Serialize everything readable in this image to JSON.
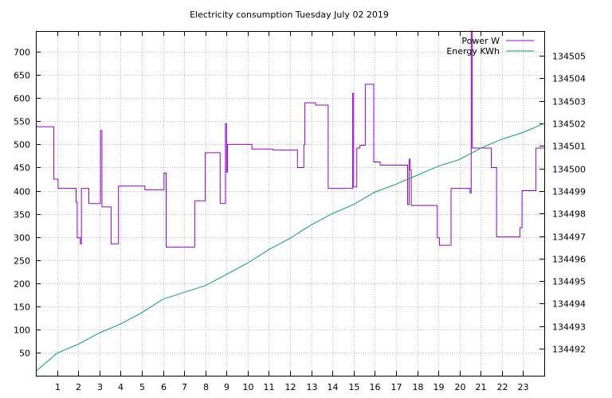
{
  "chart_data": {
    "type": "line",
    "title": "Electricity consumption Tuesday July 02 2019",
    "x_ticks": [
      1,
      2,
      3,
      4,
      5,
      6,
      7,
      8,
      9,
      10,
      11,
      12,
      13,
      14,
      15,
      16,
      17,
      18,
      19,
      20,
      21,
      22,
      23
    ],
    "xlim": [
      0,
      24
    ],
    "y_ticks": [
      50,
      100,
      150,
      200,
      250,
      300,
      350,
      400,
      450,
      500,
      550,
      600,
      650,
      700
    ],
    "ylim": [
      0,
      745
    ],
    "y2_ticks": [
      134492,
      134493,
      134494,
      134495,
      134496,
      134497,
      134498,
      134499,
      134500,
      134501,
      134502,
      134503,
      134504,
      134505
    ],
    "y2lim": [
      134490.8,
      134506.1
    ],
    "grid": true,
    "legend_position": "top-right",
    "series": [
      {
        "name": "Power W",
        "axis": "left",
        "color": "#9400d3",
        "step": true,
        "points": [
          [
            0,
            545
          ],
          [
            0.05,
            538
          ],
          [
            0.85,
            538
          ],
          [
            0.85,
            425
          ],
          [
            1.05,
            425
          ],
          [
            1.05,
            405
          ],
          [
            1.9,
            405
          ],
          [
            1.9,
            375
          ],
          [
            1.95,
            375
          ],
          [
            1.95,
            298
          ],
          [
            2.1,
            298
          ],
          [
            2.1,
            285
          ],
          [
            2.15,
            285
          ],
          [
            2.15,
            405
          ],
          [
            2.5,
            405
          ],
          [
            2.5,
            372
          ],
          [
            3.05,
            372
          ],
          [
            3.05,
            530
          ],
          [
            3.12,
            530
          ],
          [
            3.12,
            365
          ],
          [
            3.55,
            365
          ],
          [
            3.55,
            285
          ],
          [
            3.9,
            285
          ],
          [
            3.9,
            410
          ],
          [
            5.15,
            410
          ],
          [
            5.15,
            402
          ],
          [
            6.05,
            402
          ],
          [
            6.05,
            438
          ],
          [
            6.15,
            438
          ],
          [
            6.15,
            278
          ],
          [
            7.5,
            278
          ],
          [
            7.5,
            378
          ],
          [
            8.0,
            378
          ],
          [
            8.0,
            482
          ],
          [
            8.7,
            482
          ],
          [
            8.7,
            372
          ],
          [
            8.95,
            372
          ],
          [
            8.95,
            545
          ],
          [
            9.0,
            545
          ],
          [
            9.0,
            440
          ],
          [
            9.05,
            440
          ],
          [
            9.05,
            500
          ],
          [
            10.2,
            500
          ],
          [
            10.2,
            490
          ],
          [
            11.2,
            490
          ],
          [
            11.2,
            488
          ],
          [
            12.35,
            488
          ],
          [
            12.35,
            450
          ],
          [
            12.65,
            450
          ],
          [
            12.65,
            500
          ],
          [
            12.7,
            500
          ],
          [
            12.7,
            590
          ],
          [
            13.2,
            590
          ],
          [
            13.2,
            585
          ],
          [
            13.8,
            585
          ],
          [
            13.8,
            405
          ],
          [
            14.95,
            405
          ],
          [
            14.95,
            610
          ],
          [
            15.0,
            610
          ],
          [
            15.0,
            408
          ],
          [
            15.15,
            408
          ],
          [
            15.15,
            492
          ],
          [
            15.3,
            492
          ],
          [
            15.3,
            498
          ],
          [
            15.55,
            498
          ],
          [
            15.55,
            630
          ],
          [
            15.95,
            630
          ],
          [
            15.95,
            462
          ],
          [
            16.25,
            462
          ],
          [
            16.25,
            455
          ],
          [
            17.55,
            455
          ],
          [
            17.55,
            370
          ],
          [
            17.62,
            370
          ],
          [
            17.62,
            468
          ],
          [
            17.67,
            468
          ],
          [
            17.67,
            445
          ],
          [
            17.72,
            445
          ],
          [
            17.72,
            368
          ],
          [
            18.95,
            368
          ],
          [
            18.95,
            298
          ],
          [
            19.05,
            298
          ],
          [
            19.05,
            282
          ],
          [
            19.6,
            282
          ],
          [
            19.6,
            405
          ],
          [
            20.5,
            405
          ],
          [
            20.5,
            395
          ],
          [
            20.55,
            395
          ],
          [
            20.55,
            745
          ],
          [
            20.6,
            745
          ],
          [
            20.6,
            492
          ],
          [
            21.5,
            492
          ],
          [
            21.5,
            450
          ],
          [
            21.75,
            450
          ],
          [
            21.75,
            300
          ],
          [
            22.85,
            300
          ],
          [
            22.85,
            320
          ],
          [
            22.95,
            320
          ],
          [
            22.95,
            400
          ],
          [
            23.6,
            400
          ],
          [
            23.6,
            492
          ],
          [
            24.0,
            492
          ]
        ]
      },
      {
        "name": "Energy KWh",
        "axis": "right",
        "color": "#009e73",
        "points": [
          [
            0,
            134491
          ],
          [
            1,
            134491.8
          ],
          [
            2,
            134492.2
          ],
          [
            3,
            134492.7
          ],
          [
            4,
            134493.1
          ],
          [
            5,
            134493.6
          ],
          [
            6,
            134494.2
          ],
          [
            7,
            134494.5
          ],
          [
            8,
            134494.8
          ],
          [
            9,
            134495.3
          ],
          [
            10,
            134495.8
          ],
          [
            11,
            134496.4
          ],
          [
            12,
            134496.9
          ],
          [
            13,
            134497.5
          ],
          [
            14,
            134498
          ],
          [
            15,
            134498.4
          ],
          [
            16,
            134498.95
          ],
          [
            17,
            134499.3
          ],
          [
            18,
            134499.7
          ],
          [
            19,
            134500.1
          ],
          [
            20,
            134500.4
          ],
          [
            21,
            134500.9
          ],
          [
            22,
            134501.3
          ],
          [
            23,
            134501.6
          ],
          [
            24,
            134502
          ]
        ]
      }
    ]
  }
}
